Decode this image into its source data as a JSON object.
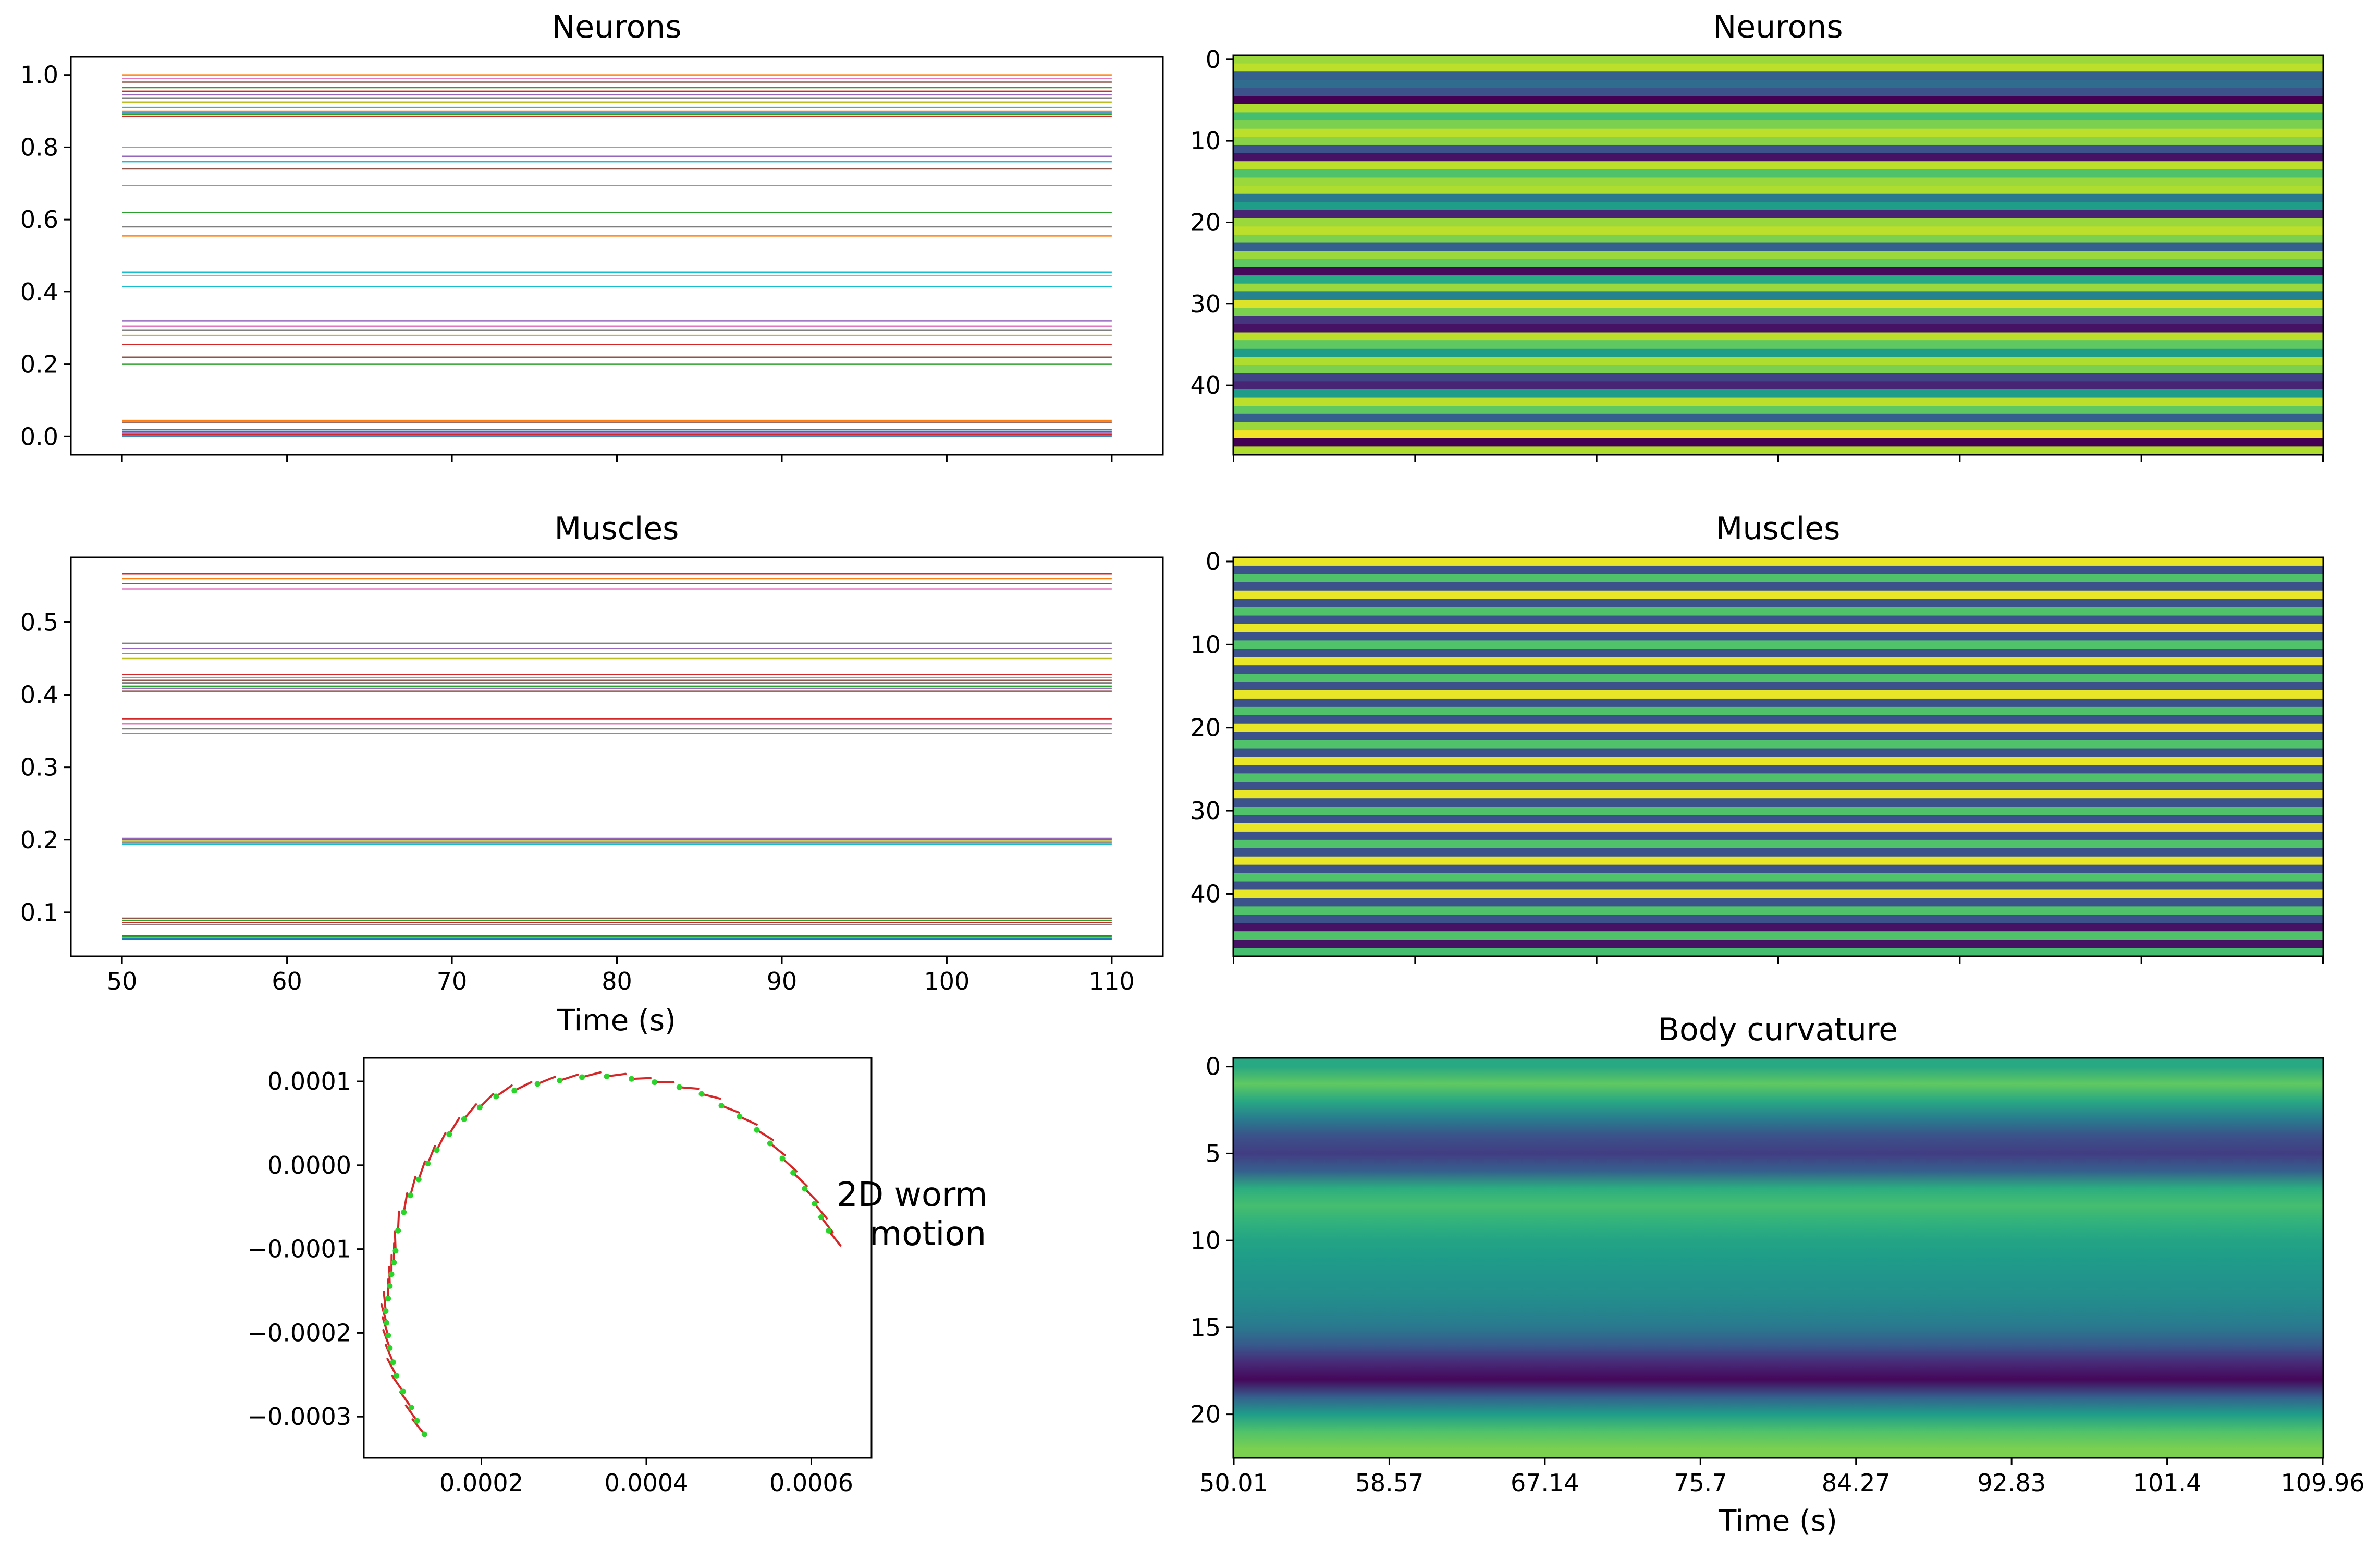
{
  "chart_data": [
    {
      "type": "line",
      "title": "Neurons",
      "xlabel": "",
      "ylabel": "",
      "xlim": [
        46.9,
        113.1
      ],
      "ylim": [
        -0.05,
        1.05
      ],
      "xticks": [
        50,
        60,
        70,
        80,
        90,
        100,
        110
      ],
      "xtick_labels_visible": false,
      "yticks": [
        0.0,
        0.2,
        0.4,
        0.6,
        0.8,
        1.0
      ],
      "ytick_labels": [
        "0.0",
        "0.2",
        "0.4",
        "0.6",
        "0.8",
        "1.0"
      ],
      "grid": false,
      "x": [
        50,
        110
      ],
      "series_levels": [
        1.0,
        0.99,
        0.98,
        0.965,
        0.955,
        0.945,
        0.935,
        0.925,
        0.91,
        0.9,
        0.895,
        0.89,
        0.885,
        0.8,
        0.775,
        0.76,
        0.74,
        0.695,
        0.62,
        0.58,
        0.555,
        0.455,
        0.445,
        0.415,
        0.32,
        0.305,
        0.295,
        0.28,
        0.255,
        0.22,
        0.2,
        0.045,
        0.04,
        0.02,
        0.015,
        0.01,
        0.007,
        0.005,
        0.003,
        0.001
      ],
      "series_colors": [
        "#ff7f0e",
        "#e377c2",
        "#8c564b",
        "#2ca02c",
        "#d62728",
        "#9467bd",
        "#7f7f7f",
        "#bcbd22",
        "#17becf",
        "#ff7f0e",
        "#1f77b4",
        "#2ca02c",
        "#d62728",
        "#e377c2",
        "#9467bd",
        "#17becf",
        "#8c564b",
        "#ff7f0e",
        "#2ca02c",
        "#7f7f7f",
        "#ff7f0e",
        "#17becf",
        "#bcbd22",
        "#17becf",
        "#9467bd",
        "#e377c2",
        "#7f7f7f",
        "#bcbd22",
        "#d62728",
        "#8c564b",
        "#2ca02c",
        "#ff7f0e",
        "#8c564b",
        "#2ca02c",
        "#1f77b4",
        "#9467bd",
        "#17becf",
        "#d62728",
        "#e377c2",
        "#1f77b4"
      ]
    },
    {
      "type": "heatmap",
      "title": "Neurons",
      "xlabel": "",
      "ylabel": "",
      "n_rows": 49,
      "yticks": [
        0,
        10,
        20,
        30,
        40
      ],
      "ytick_labels": [
        "0",
        "10",
        "20",
        "30",
        "40"
      ],
      "xtick_labels_visible": false,
      "n_xticks": 7,
      "colormap": "viridis",
      "row_values": [
        0.85,
        0.9,
        0.3,
        0.35,
        0.25,
        0.0,
        0.88,
        0.7,
        0.8,
        0.9,
        0.82,
        0.25,
        0.05,
        0.9,
        0.72,
        0.85,
        0.88,
        0.4,
        0.55,
        0.1,
        0.85,
        0.9,
        0.8,
        0.3,
        0.85,
        0.75,
        0.02,
        0.6,
        0.85,
        0.45,
        0.95,
        0.8,
        0.15,
        0.05,
        0.9,
        0.75,
        0.55,
        0.88,
        0.8,
        0.2,
        0.1,
        0.55,
        0.9,
        0.75,
        0.3,
        0.85,
        0.98,
        0.0,
        0.88
      ]
    },
    {
      "type": "line",
      "title": "Muscles",
      "xlabel": "Time (s)",
      "ylabel": "",
      "xlim": [
        46.9,
        113.1
      ],
      "ylim": [
        0.0395,
        0.5895
      ],
      "xticks": [
        50,
        60,
        70,
        80,
        90,
        100,
        110
      ],
      "xtick_labels": [
        "50",
        "60",
        "70",
        "80",
        "90",
        "100",
        "110"
      ],
      "yticks": [
        0.1,
        0.2,
        0.3,
        0.4,
        0.5
      ],
      "ytick_labels": [
        "0.1",
        "0.2",
        "0.3",
        "0.4",
        "0.5"
      ],
      "grid": false,
      "x": [
        50,
        110
      ],
      "series_levels": [
        0.567,
        0.56,
        0.553,
        0.546,
        0.471,
        0.464,
        0.457,
        0.45,
        0.428,
        0.424,
        0.42,
        0.416,
        0.412,
        0.409,
        0.405,
        0.367,
        0.36,
        0.353,
        0.347,
        0.202,
        0.2,
        0.198,
        0.196,
        0.194,
        0.092,
        0.089,
        0.086,
        0.083,
        0.068,
        0.066,
        0.064,
        0.063
      ],
      "series_colors": [
        "#d62728",
        "#ff7f0e",
        "#8c564b",
        "#e377c2",
        "#7f7f7f",
        "#9467bd",
        "#17becf",
        "#bcbd22",
        "#d62728",
        "#ff7f0e",
        "#8c564b",
        "#7f7f7f",
        "#2ca02c",
        "#9467bd",
        "#8c564b",
        "#d62728",
        "#e377c2",
        "#7f7f7f",
        "#17becf",
        "#9467bd",
        "#2ca02c",
        "#bcbd22",
        "#7f7f7f",
        "#17becf",
        "#8c564b",
        "#2ca02c",
        "#d62728",
        "#7f7f7f",
        "#1f77b4",
        "#2ca02c",
        "#17becf",
        "#1f77b4"
      ]
    },
    {
      "type": "heatmap",
      "title": "Muscles",
      "xlabel": "",
      "ylabel": "",
      "n_rows": 48,
      "yticks": [
        0,
        10,
        20,
        30,
        40
      ],
      "ytick_labels": [
        "0",
        "10",
        "20",
        "30",
        "40"
      ],
      "xtick_labels_visible": false,
      "n_xticks": 7,
      "colormap": "viridis",
      "row_pattern": [
        0.97,
        0.25,
        0.72,
        0.25
      ],
      "row_values_end": [
        0.05,
        0.72,
        0.05,
        0.7
      ]
    },
    {
      "type": "line",
      "title": "",
      "annotation": "2D worm\nmotion",
      "annotation_lines": [
        "2D worm",
        "motion"
      ],
      "xlabel": "",
      "ylabel": "",
      "xlim": [
        5.75e-05,
        0.000673
      ],
      "ylim": [
        -0.000349,
        0.000128
      ],
      "xticks": [
        0.0002,
        0.0004,
        0.0006
      ],
      "xtick_labels": [
        "0.0002",
        "0.0004",
        "0.0006"
      ],
      "yticks": [
        0.0001,
        0.0,
        -0.0001,
        -0.0002,
        -0.0003
      ],
      "ytick_labels": [
        "0.0001",
        "0.0000",
        "−0.0001",
        "−0.0002",
        "−0.0003"
      ],
      "grid": false,
      "series": [
        {
          "color": "#2bd42b",
          "marker": "dot"
        },
        {
          "color": "#d62728",
          "marker": "tail"
        }
      ],
      "points": [
        {
          "x": 0.000131,
          "y": -0.000321
        },
        {
          "x": 0.000122,
          "y": -0.000305
        },
        {
          "x": 0.000115,
          "y": -0.000289
        },
        {
          "x": 0.000105,
          "y": -0.00027
        },
        {
          "x": 9.7e-05,
          "y": -0.000251
        },
        {
          "x": 9.3e-05,
          "y": -0.000235
        },
        {
          "x": 8.9e-05,
          "y": -0.000218
        },
        {
          "x": 8.7e-05,
          "y": -0.000203
        },
        {
          "x": 8.5e-05,
          "y": -0.000188
        },
        {
          "x": 8.4e-05,
          "y": -0.000174
        },
        {
          "x": 8.7e-05,
          "y": -0.000159
        },
        {
          "x": 8.9e-05,
          "y": -0.000144
        },
        {
          "x": 9.1e-05,
          "y": -0.00013
        },
        {
          "x": 9.4e-05,
          "y": -0.000116
        },
        {
          "x": 9.6e-05,
          "y": -0.000102
        },
        {
          "x": 9.9e-05,
          "y": -7.8e-05
        },
        {
          "x": 0.000106,
          "y": -5.6e-05
        },
        {
          "x": 0.000114,
          "y": -3.6e-05
        },
        {
          "x": 0.000124,
          "y": -1.7e-05
        },
        {
          "x": 0.000135,
          "y": 2e-06
        },
        {
          "x": 0.000146,
          "y": 1.8e-05
        },
        {
          "x": 0.000161,
          "y": 3.7e-05
        },
        {
          "x": 0.000179,
          "y": 5.5e-05
        },
        {
          "x": 0.000198,
          "y": 6.9e-05
        },
        {
          "x": 0.000218,
          "y": 8.2e-05
        },
        {
          "x": 0.00024,
          "y": 8.9e-05
        },
        {
          "x": 0.000268,
          "y": 9.7e-05
        },
        {
          "x": 0.000295,
          "y": 0.000101
        },
        {
          "x": 0.000322,
          "y": 0.000105
        },
        {
          "x": 0.000352,
          "y": 0.000106
        },
        {
          "x": 0.000382,
          "y": 0.000103
        },
        {
          "x": 0.00041,
          "y": 9.9e-05
        },
        {
          "x": 0.00044,
          "y": 9.3e-05
        },
        {
          "x": 0.000467,
          "y": 8.5e-05
        },
        {
          "x": 0.000491,
          "y": 7.1e-05
        },
        {
          "x": 0.000513,
          "y": 5.8e-05
        },
        {
          "x": 0.000534,
          "y": 4.2e-05
        },
        {
          "x": 0.00055,
          "y": 2.6e-05
        },
        {
          "x": 0.000565,
          "y": 8e-06
        },
        {
          "x": 0.000578,
          "y": -9e-06
        },
        {
          "x": 0.000592,
          "y": -2.8e-05
        },
        {
          "x": 0.000604,
          "y": -4.6e-05
        },
        {
          "x": 0.000612,
          "y": -6.2e-05
        },
        {
          "x": 0.000621,
          "y": -7.8e-05
        }
      ]
    },
    {
      "type": "heatmap",
      "title": "Body curvature",
      "xlabel": "Time (s)",
      "ylabel": "",
      "n_rows": 23,
      "yticks": [
        0,
        5,
        10,
        15,
        20
      ],
      "ytick_labels": [
        "0",
        "5",
        "10",
        "15",
        "20"
      ],
      "xtick_labels": [
        "50.01",
        "58.57",
        "67.14",
        "75.7",
        "84.27",
        "92.83",
        "101.4",
        "109.96"
      ],
      "colormap": "viridis",
      "row_values": [
        0.6,
        0.75,
        0.6,
        0.42,
        0.25,
        0.18,
        0.3,
        0.62,
        0.7,
        0.64,
        0.58,
        0.55,
        0.52,
        0.5,
        0.46,
        0.4,
        0.28,
        0.12,
        0.02,
        0.3,
        0.55,
        0.72,
        0.8
      ]
    }
  ]
}
